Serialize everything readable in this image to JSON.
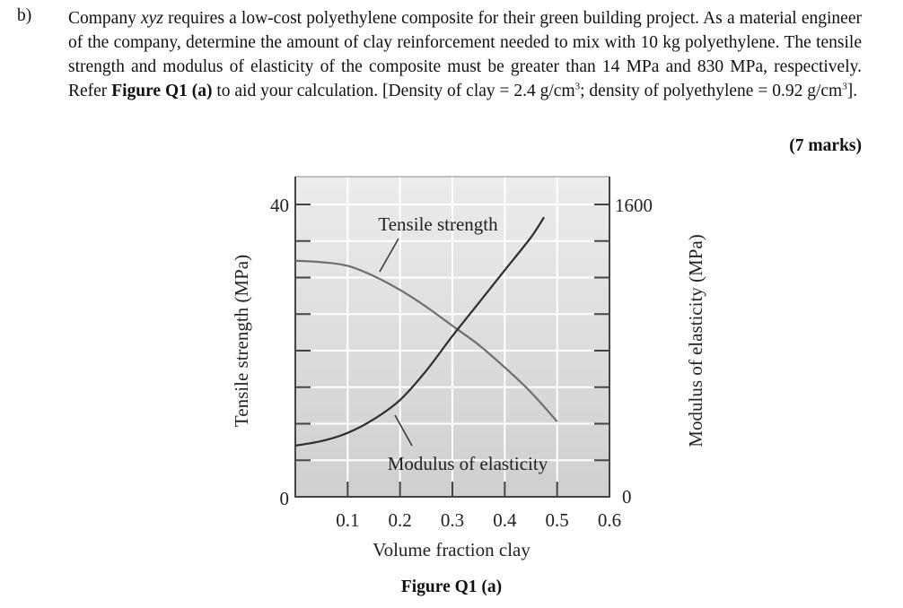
{
  "question": {
    "label": "b)",
    "text_parts": [
      "Company ",
      "xyz",
      " requires a low-cost polyethylene composite for their green building project. As a material engineer of the company, determine the amount of clay reinforcement needed to mix with 10 kg polyethylene.  The tensile strength and modulus of elasticity of the composite must be greater than 14 MPa and 830 MPa, respectively. Refer ",
      "Figure Q1 (a)",
      " to aid your calculation. [Density of clay = 2.4 g/cm",
      "3",
      "; density of polyethylene = 0.92 g/cm",
      "3",
      "]."
    ],
    "marks": "(7 marks)"
  },
  "figure": {
    "caption": "Figure Q1 (a)"
  },
  "chart_data": {
    "type": "line",
    "title": "",
    "xlabel": "Volume fraction clay",
    "ylabel": "Tensile strength (MPa)",
    "ylabel_right": "Modulus of elasticity (MPa)",
    "xlim": [
      0,
      0.6
    ],
    "ylim": [
      0,
      40
    ],
    "ylim_right": [
      0,
      1600
    ],
    "x_ticks": [
      "0.1",
      "0.2",
      "0.3",
      "0.4",
      "0.5",
      "0.6"
    ],
    "y_ticks_left": [
      "0",
      "40"
    ],
    "y_ticks_right": [
      "0",
      "1600"
    ],
    "grid": true,
    "series": [
      {
        "name": "Tensile strength",
        "axis": "left",
        "x": [
          0,
          0.05,
          0.1,
          0.15,
          0.2,
          0.25,
          0.3,
          0.35,
          0.4,
          0.45,
          0.5
        ],
        "values": [
          32.3,
          32.1,
          31.6,
          30.2,
          28.3,
          26.0,
          23.4,
          20.8,
          17.7,
          14.3,
          10.3
        ]
      },
      {
        "name": "Modulus of elasticity",
        "axis": "right",
        "x": [
          0,
          0.05,
          0.1,
          0.15,
          0.2,
          0.25,
          0.3,
          0.35,
          0.4,
          0.45,
          0.475
        ],
        "values": [
          280,
          305,
          350,
          425,
          530,
          690,
          880,
          1060,
          1240,
          1420,
          1530
        ]
      }
    ],
    "annotations": [
      "Tensile strength",
      "Modulus of elasticity"
    ]
  },
  "colors": {
    "plot_bg_top": "#ececec",
    "plot_bg_bottom": "#cfcfcf",
    "grid": "#ffffff",
    "tensile_curve": "#6e6e6e",
    "modulus_curve": "#2e2e2e",
    "axis": "#444444"
  }
}
